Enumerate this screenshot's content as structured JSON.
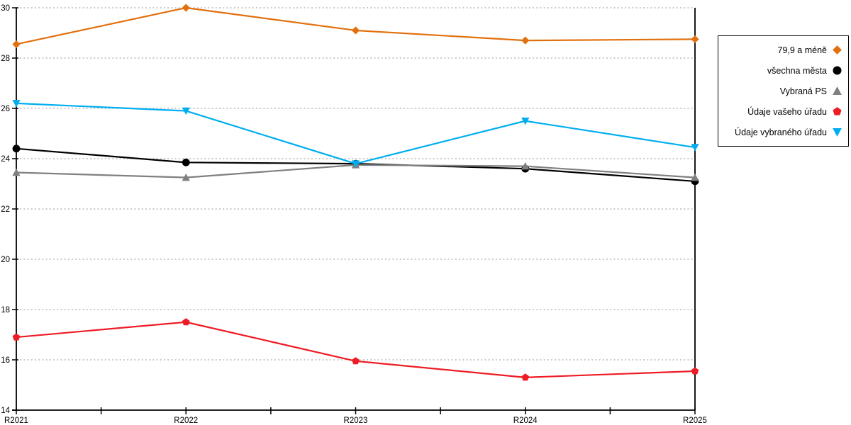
{
  "chart_data": {
    "type": "line",
    "title": "",
    "xlabel": "",
    "ylabel": "",
    "categories": [
      "R2021",
      "R2022",
      "R2023",
      "R2024",
      "R2025"
    ],
    "series": [
      {
        "name": "79,9 a méně",
        "color": "#E2700E",
        "marker": "diamond",
        "values": [
          28.55,
          30.0,
          29.1,
          28.7,
          28.75
        ]
      },
      {
        "name": "všechna města",
        "color": "#000000",
        "marker": "circle",
        "values": [
          24.4,
          23.85,
          23.8,
          23.6,
          23.1
        ]
      },
      {
        "name": "Vybraná PS",
        "color": "#808080",
        "marker": "triangle-up",
        "values": [
          23.45,
          23.25,
          23.75,
          23.7,
          23.25
        ]
      },
      {
        "name": "Údaje vašeho úřadu",
        "color": "#EE1C25",
        "marker": "pentagon",
        "values": [
          16.9,
          17.5,
          15.95,
          15.3,
          15.55
        ]
      },
      {
        "name": "Údaje vybraného úřadu",
        "color": "#00AEEF",
        "marker": "triangle-down",
        "values": [
          26.2,
          25.9,
          23.8,
          25.5,
          24.45
        ]
      }
    ],
    "ylim": [
      14,
      30
    ],
    "ytick_step": 2,
    "yticks": [
      14,
      16,
      18,
      20,
      22,
      24,
      26,
      28,
      30
    ],
    "grid": "horizontal-dashed",
    "gridline_color": "#ABABAB",
    "axis_color": "#000000",
    "legend": {
      "position": "right",
      "entries": [
        "79,9 a méně",
        "všechna města",
        "Vybraná PS",
        "Údaje vašeho úřadu",
        "Údaje vybraného úřadu"
      ]
    }
  }
}
